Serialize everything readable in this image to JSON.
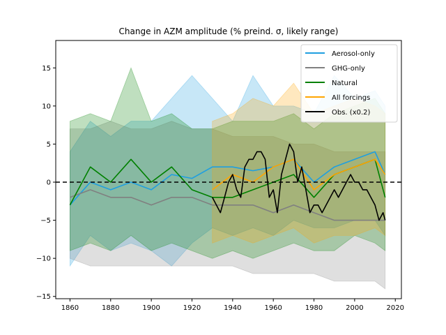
{
  "chart_data": {
    "type": "line",
    "title": "Change in AZM amplitude (% preind. σ, likely range)",
    "xlabel": "",
    "ylabel": "",
    "xlim": [
      1853,
      2023
    ],
    "ylim": [
      -15.3,
      18.6
    ],
    "xticks": [
      1860,
      1880,
      1900,
      1920,
      1940,
      1960,
      1980,
      2000,
      2020
    ],
    "yticks": [
      -15,
      -10,
      -5,
      0,
      5,
      10,
      15
    ],
    "reference_line": {
      "y": 0,
      "style": "dashed",
      "color": "#000000"
    },
    "grid": false,
    "legend_position": "upper right",
    "series": [
      {
        "name": "Aerosol-only",
        "color": "#1f9fe0",
        "x": [
          1860,
          1870,
          1880,
          1890,
          1900,
          1910,
          1920,
          1930,
          1940,
          1950,
          1960,
          1970,
          1980,
          1990,
          2000,
          2010,
          2015
        ],
        "y": [
          -3,
          0,
          -1,
          0,
          -1,
          1,
          0.5,
          2,
          2,
          1.5,
          2,
          3,
          0,
          2,
          3,
          4,
          1
        ],
        "lower": [
          -11,
          -7,
          -9,
          -8,
          -9,
          -11,
          -8,
          -6,
          -7,
          -6,
          -7,
          -5,
          -6,
          -6,
          -5,
          -5,
          -7
        ],
        "upper": [
          4,
          8,
          6,
          8,
          8,
          11,
          14,
          11,
          8,
          14,
          10,
          10,
          9,
          14,
          11,
          12,
          10
        ]
      },
      {
        "name": "GHG-only",
        "color": "#808080",
        "x": [
          1860,
          1870,
          1880,
          1890,
          1900,
          1910,
          1920,
          1930,
          1940,
          1950,
          1960,
          1970,
          1980,
          1990,
          2000,
          2010,
          2015
        ],
        "y": [
          -2,
          -1,
          -2,
          -2,
          -3,
          -2,
          -2,
          -3,
          -3,
          -3,
          -4,
          -3,
          -4,
          -5,
          -5,
          -5,
          -5
        ],
        "lower": [
          -10,
          -11,
          -11,
          -11,
          -11,
          -11,
          -11,
          -11,
          -11,
          -12,
          -12,
          -12,
          -12,
          -13,
          -13,
          -13,
          -14
        ],
        "upper": [
          7,
          7,
          8,
          7,
          7,
          8,
          7,
          7,
          6,
          6,
          6,
          5,
          5,
          4,
          4,
          4,
          4
        ]
      },
      {
        "name": "Natural",
        "color": "#008000",
        "x": [
          1860,
          1870,
          1880,
          1890,
          1900,
          1910,
          1920,
          1930,
          1940,
          1950,
          1960,
          1970,
          1980,
          1990,
          2000,
          2010,
          2015
        ],
        "y": [
          -3,
          2,
          0,
          3,
          0,
          2,
          -1,
          -2,
          -2,
          -1,
          0,
          1,
          -2,
          1,
          2,
          3,
          -2
        ],
        "lower": [
          -9,
          -8,
          -9,
          -7,
          -9,
          -8,
          -9,
          -10,
          -9,
          -10,
          -9,
          -8,
          -9,
          -9,
          -7,
          -8,
          -9
        ],
        "upper": [
          8,
          9,
          8,
          15,
          8,
          9,
          7,
          7,
          8,
          8,
          8,
          9,
          7,
          9,
          10,
          11,
          9
        ]
      },
      {
        "name": "All forcings",
        "color": "#ffa500",
        "x": [
          1930,
          1940,
          1950,
          1960,
          1970,
          1980,
          1990,
          2000,
          2010,
          2015
        ],
        "y": [
          -1,
          1,
          0,
          2,
          3,
          -1,
          1,
          2,
          3,
          1
        ],
        "lower": [
          -8,
          -7,
          -8,
          -7,
          -6,
          -8,
          -7,
          -7,
          -6,
          -7
        ],
        "upper": [
          8,
          9,
          11,
          10,
          13,
          9,
          10,
          11,
          10,
          9
        ]
      },
      {
        "name": "Obs. (x0.2)",
        "color": "#000000",
        "x": [
          1930,
          1932,
          1934,
          1936,
          1938,
          1940,
          1942,
          1944,
          1946,
          1948,
          1950,
          1952,
          1954,
          1956,
          1958,
          1960,
          1962,
          1964,
          1966,
          1968,
          1970,
          1972,
          1974,
          1976,
          1978,
          1980,
          1982,
          1984,
          1986,
          1988,
          1990,
          1992,
          1994,
          1996,
          1998,
          2000,
          2002,
          2004,
          2006,
          2008,
          2010,
          2012,
          2014,
          2015
        ],
        "y": [
          -2,
          -3,
          -4,
          -2,
          0,
          1,
          -1,
          -2,
          2,
          3,
          3,
          4,
          4,
          3,
          -2,
          -1,
          -4,
          1,
          3,
          5,
          4,
          0,
          2,
          -1,
          -4,
          -3,
          -3,
          -4,
          -3,
          -2,
          -1,
          -2,
          -1,
          0,
          1,
          0,
          0,
          -1,
          -1,
          -2,
          -3,
          -5,
          -4,
          -5
        ]
      }
    ]
  }
}
